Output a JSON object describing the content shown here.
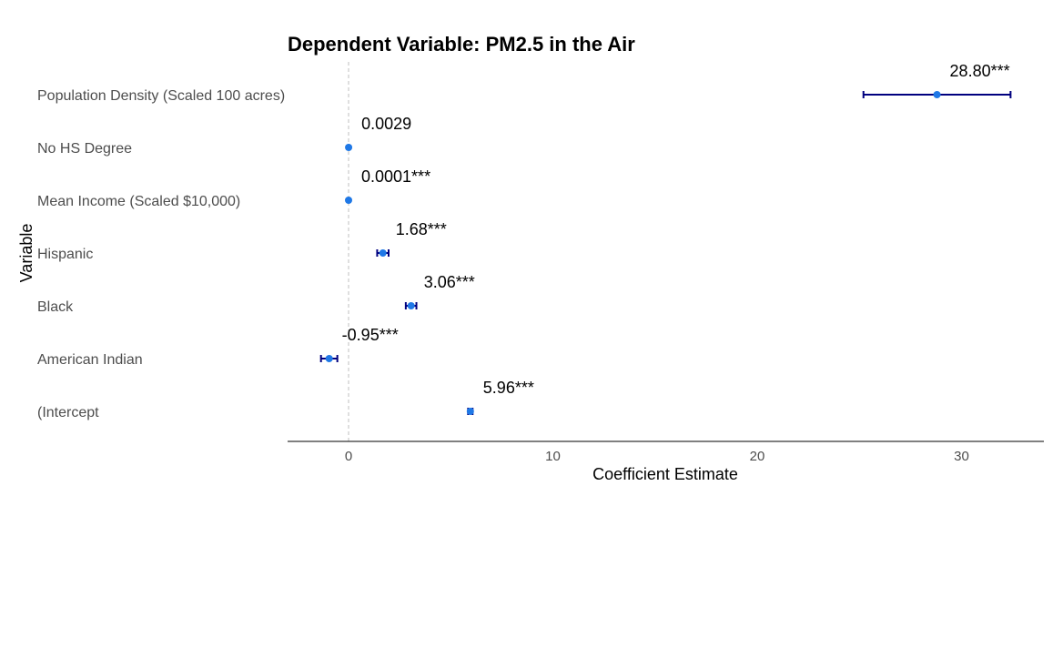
{
  "chart_data": {
    "type": "scatter",
    "title": "Dependent Variable: PM2.5 in the Air",
    "xlabel": "Coefficient Estimate",
    "ylabel": "Variable",
    "xlim": [
      -3,
      34
    ],
    "xticks": [
      0,
      10,
      20,
      30
    ],
    "reference_line_x": 0,
    "grid": false,
    "colors": {
      "point": "#1f78e6",
      "errorbar": "#00007f",
      "refline": "#bfbfbf",
      "axis": "#000000"
    },
    "categories": [
      "Population Density (Scaled 100 acres)",
      "No HS Degree",
      "Mean Income (Scaled $10,000)",
      "Hispanic",
      "Black",
      "American Indian",
      "(Intercept"
    ],
    "estimates": [
      28.8,
      0.0029,
      0.0001,
      1.68,
      3.06,
      -0.95,
      5.96
    ],
    "ci_low": [
      25.2,
      0.0029,
      0.0001,
      1.4,
      2.8,
      -1.35,
      5.85
    ],
    "ci_high": [
      32.4,
      0.0029,
      0.0001,
      1.96,
      3.32,
      -0.55,
      6.07
    ],
    "value_labels": [
      "28.80***",
      "0.0029",
      "0.0001***",
      "1.68***",
      "3.06***",
      "-0.95***",
      "5.96***"
    ]
  }
}
